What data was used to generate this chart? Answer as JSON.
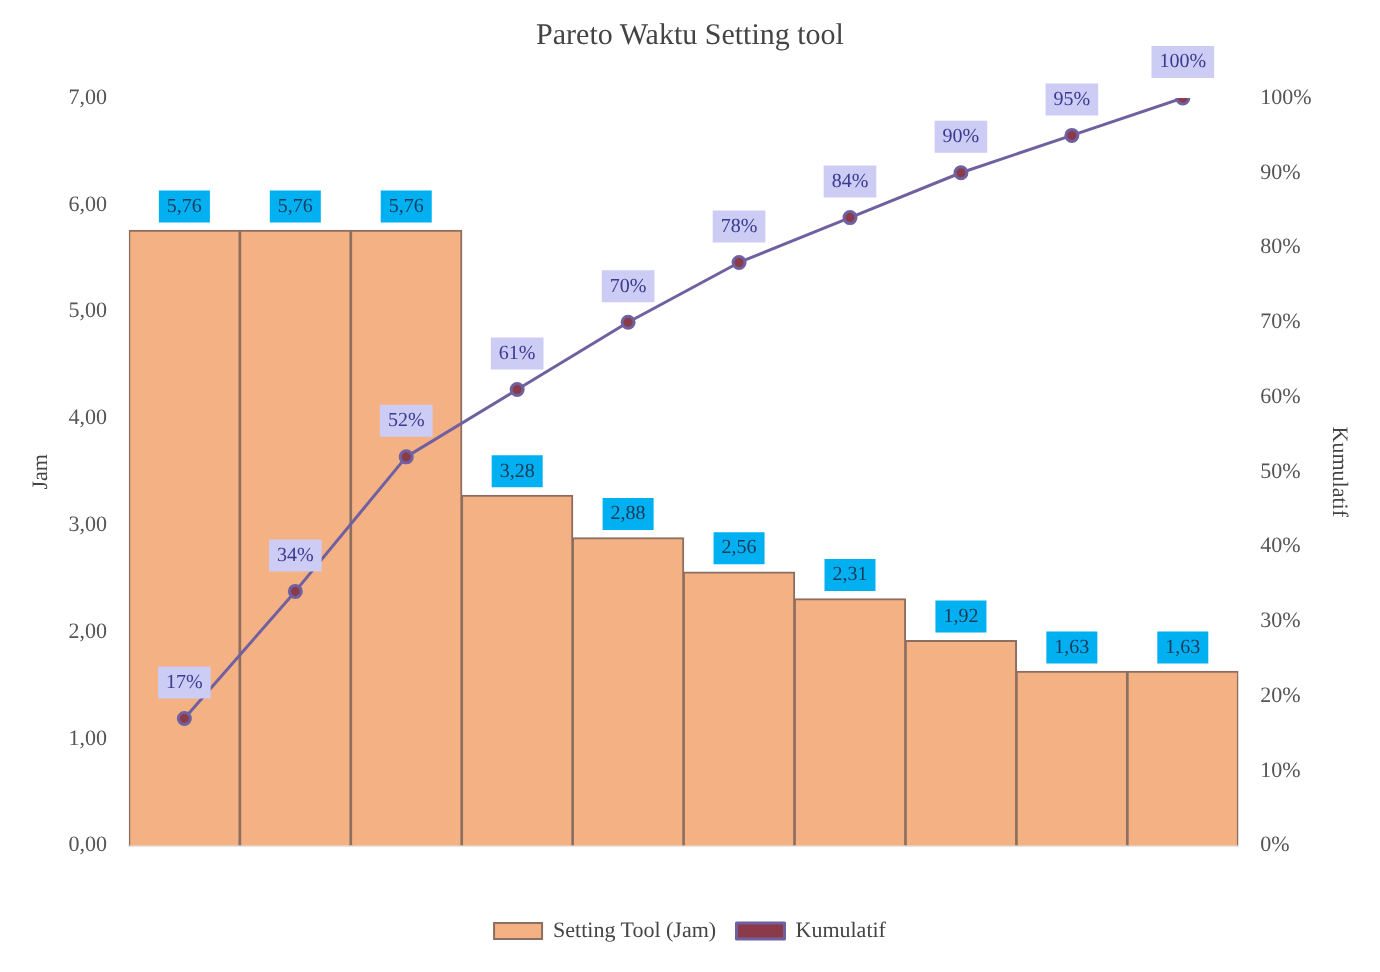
{
  "chart_data": {
    "type": "bar",
    "title": "Pareto Waktu Setting tool",
    "ylabel": "Jam",
    "y2label": "Kumulatif",
    "categories": [
      null,
      null,
      null,
      null,
      null,
      null,
      null,
      null,
      null,
      null
    ],
    "series": [
      {
        "name": "Setting Tool (Jam)",
        "color": "#f4b183",
        "values": [
          5.76,
          5.76,
          5.76,
          3.28,
          2.88,
          2.56,
          2.31,
          1.92,
          1.63,
          1.63
        ],
        "value_labels": [
          "5,76",
          "5,76",
          "5,76",
          "3,28",
          "2,88",
          "2,56",
          "2,31",
          "1,92",
          "1,63",
          "1,63"
        ]
      },
      {
        "name": "Kumulatif",
        "type": "line",
        "axis": "y2",
        "color": "#7060a0",
        "marker": "circle",
        "values": [
          17,
          34,
          52,
          61,
          70,
          78,
          84,
          90,
          95,
          100
        ],
        "value_labels": [
          "17%",
          "34%",
          "52%",
          "61%",
          "70%",
          "78%",
          "84%",
          "90%",
          "95%",
          "100%"
        ]
      }
    ],
    "ylim": [
      0,
      7
    ],
    "yticks": [
      {
        "value": 0,
        "label": "0,00"
      },
      {
        "value": 1,
        "label": "1,00"
      },
      {
        "value": 2,
        "label": "2,00"
      },
      {
        "value": 3,
        "label": "3,00"
      },
      {
        "value": 4,
        "label": "4,00"
      },
      {
        "value": 5,
        "label": "5,00"
      },
      {
        "value": 6,
        "label": "6,00"
      },
      {
        "value": 7,
        "label": "7,00"
      }
    ],
    "y2lim": [
      0,
      100
    ],
    "y2ticks": [
      {
        "value": 0,
        "label": "0%"
      },
      {
        "value": 10,
        "label": "10%"
      },
      {
        "value": 20,
        "label": "20%"
      },
      {
        "value": 30,
        "label": "30%"
      },
      {
        "value": 40,
        "label": "40%"
      },
      {
        "value": 50,
        "label": "50%"
      },
      {
        "value": 60,
        "label": "60%"
      },
      {
        "value": 70,
        "label": "70%"
      },
      {
        "value": 80,
        "label": "80%"
      },
      {
        "value": 90,
        "label": "90%"
      },
      {
        "value": 100,
        "label": "100%"
      }
    ],
    "grid": false,
    "legend": "bottom"
  }
}
